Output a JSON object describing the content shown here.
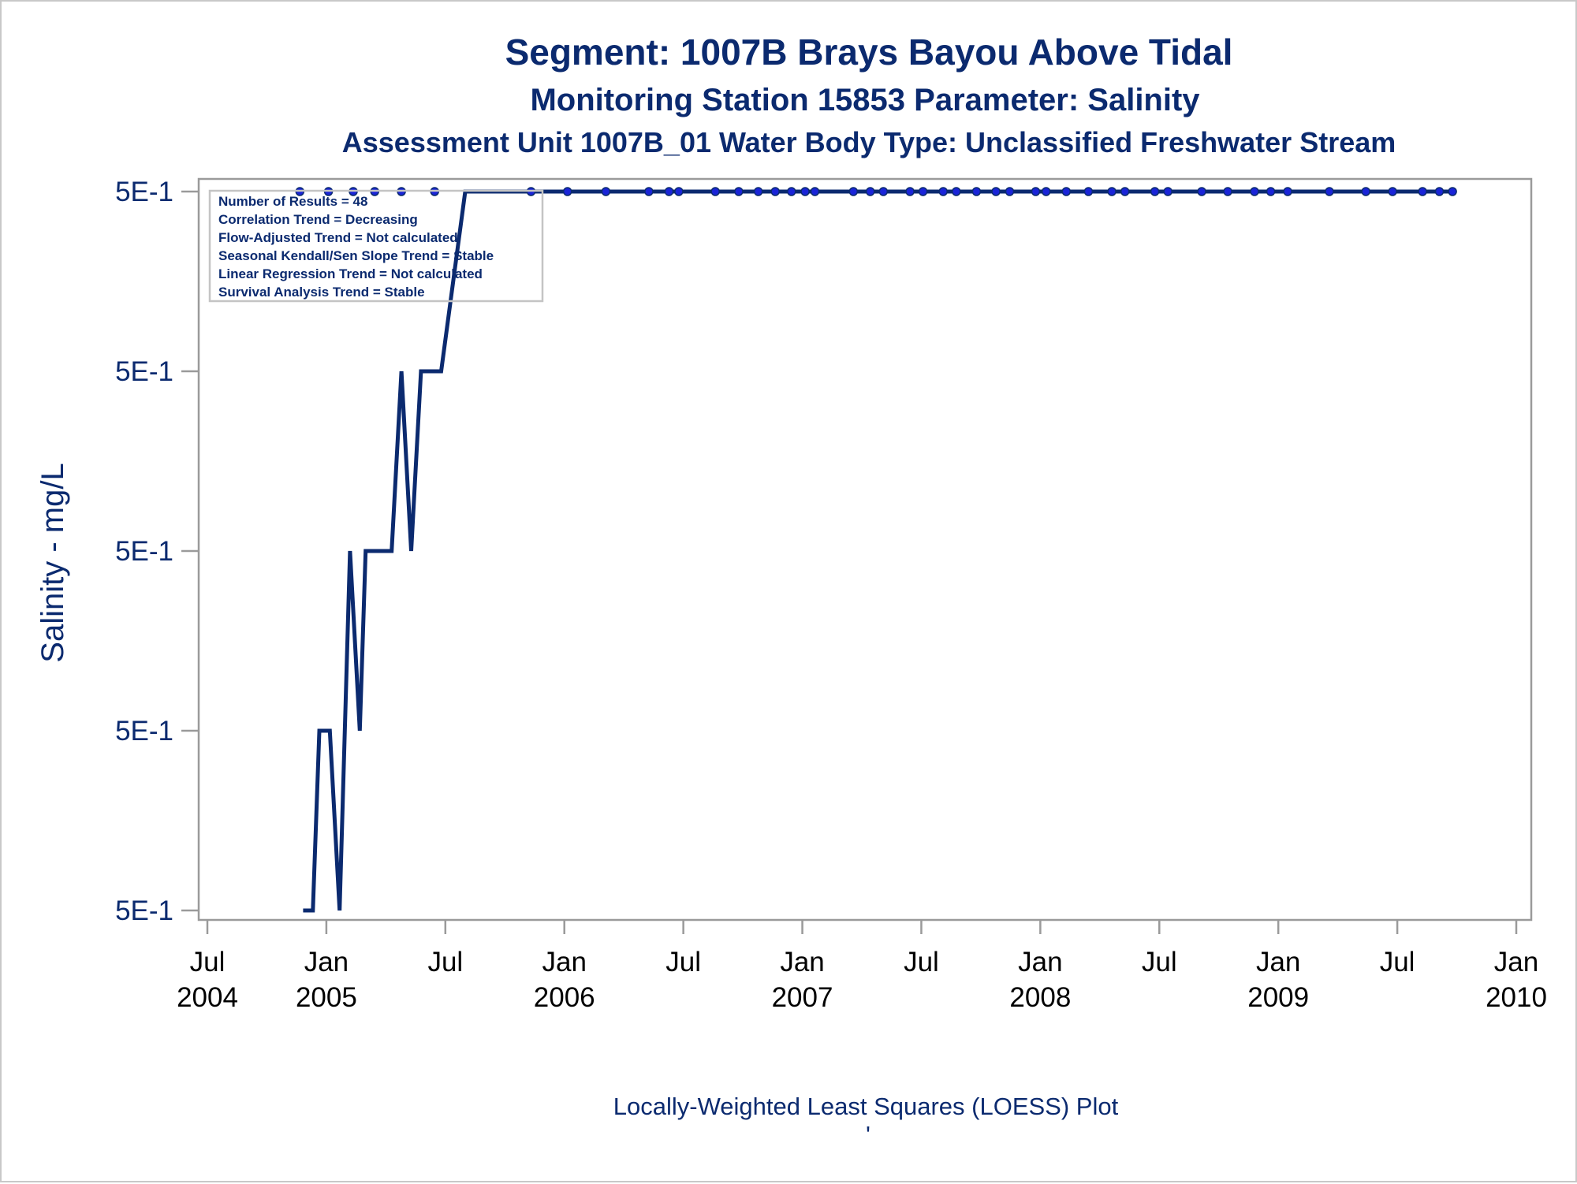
{
  "chart_data": {
    "type": "line",
    "title": "Segment: 1007B  Brays Bayou Above Tidal",
    "subtitle": "Monitoring Station 15853 Parameter: Salinity",
    "subtitle2": "Assessment Unit 1007B_01   Water Body Type: Unclassified Freshwater Stream",
    "ylabel": "Salinity - mg/L",
    "xlabel": "",
    "footnote": "Locally-Weighted Least Squares (LOESS) Plot",
    "footnote_mark": "'",
    "y_tick_labels": [
      "5E-1",
      "5E-1",
      "5E-1",
      "5E-1",
      "5E-1"
    ],
    "x_tick_labels": [
      {
        "month": "Jul",
        "year": "2004"
      },
      {
        "month": "Jan",
        "year": "2005"
      },
      {
        "month": "Jul",
        "year": ""
      },
      {
        "month": "Jan",
        "year": "2006"
      },
      {
        "month": "Jul",
        "year": ""
      },
      {
        "month": "Jan",
        "year": "2007"
      },
      {
        "month": "Jul",
        "year": ""
      },
      {
        "month": "Jan",
        "year": "2008"
      },
      {
        "month": "Jul",
        "year": ""
      },
      {
        "month": "Jan",
        "year": "2009"
      },
      {
        "month": "Jul",
        "year": ""
      },
      {
        "month": "Jan",
        "year": "2010"
      }
    ],
    "x_range": [
      "2004-07",
      "2010-01"
    ],
    "y_range_level": [
      0,
      4
    ],
    "legend_position": "top-left",
    "grid": false,
    "stats_box": [
      "Number of Results = 48",
      "Correlation Trend = Decreasing",
      "Flow-Adjusted Trend = Not calculated",
      "Seasonal Kendall/Sen Slope Trend = Stable",
      "Linear Regression Trend = Not calculated",
      "Survival Analysis Trend = Stable"
    ],
    "series": [
      {
        "type": "line",
        "x": [
          "2004-11-25",
          "2004-12-10",
          "2004-12-20",
          "2005-01-05",
          "2005-01-20",
          "2005-02-05",
          "2005-02-20",
          "2005-03-01",
          "2005-04-10",
          "2005-04-25",
          "2005-05-10",
          "2005-05-25",
          "2005-06-10",
          "2005-06-25",
          "2005-08-01",
          "2005-11-01",
          "2006-01-01",
          "2009-09-25"
        ],
        "levels": [
          0,
          0,
          1,
          1,
          0,
          2,
          1,
          2,
          2,
          3,
          2,
          3,
          3,
          3,
          4,
          4,
          4,
          4
        ]
      },
      {
        "type": "scatter",
        "x": [
          "2004-11-20",
          "2005-01-03",
          "2005-02-10",
          "2005-03-15",
          "2005-04-25",
          "2005-06-15",
          "2005-11-10",
          "2006-01-05",
          "2006-03-05",
          "2006-05-10",
          "2006-06-10",
          "2006-06-25",
          "2006-08-20",
          "2006-09-25",
          "2006-10-25",
          "2006-11-20",
          "2006-12-15",
          "2007-01-05",
          "2007-01-20",
          "2007-03-20",
          "2007-04-15",
          "2007-05-05",
          "2007-06-15",
          "2007-07-05",
          "2007-08-05",
          "2007-08-25",
          "2007-09-25",
          "2007-10-25",
          "2007-11-15",
          "2007-12-25",
          "2008-01-10",
          "2008-02-10",
          "2008-03-15",
          "2008-04-20",
          "2008-05-10",
          "2008-06-25",
          "2008-07-15",
          "2008-09-05",
          "2008-10-15",
          "2008-11-25",
          "2008-12-20",
          "2009-01-15",
          "2009-03-20",
          "2009-05-15",
          "2009-06-25",
          "2009-08-10",
          "2009-09-05",
          "2009-09-25"
        ],
        "levels": [
          4,
          4,
          4,
          4,
          4,
          4,
          4,
          4,
          4,
          4,
          4,
          4,
          4,
          4,
          4,
          4,
          4,
          4,
          4,
          4,
          4,
          4,
          4,
          4,
          4,
          4,
          4,
          4,
          4,
          4,
          4,
          4,
          4,
          4,
          4,
          4,
          4,
          4,
          4,
          4,
          4,
          4,
          4,
          4,
          4,
          4,
          4,
          4
        ]
      }
    ]
  }
}
